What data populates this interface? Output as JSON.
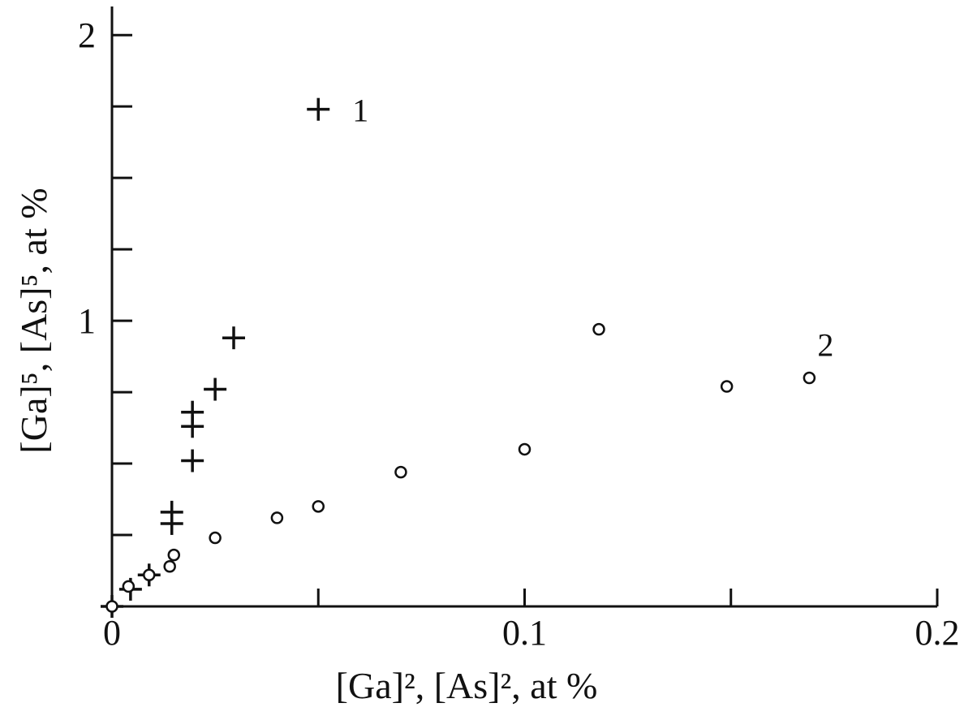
{
  "chart_data": {
    "type": "scatter",
    "xlabel": "[Ga]², [As]², at %",
    "ylabel": "[Ga]⁵, [As]⁵, at %",
    "xlim": [
      0,
      0.2
    ],
    "ylim": [
      0,
      2.1
    ],
    "x_ticks": [
      0,
      0.05,
      0.1,
      0.15,
      0.2
    ],
    "x_tick_labels": [
      "0",
      "",
      "0.1",
      "",
      "0.2"
    ],
    "y_ticks": [
      0,
      0.25,
      0.5,
      0.75,
      1,
      1.25,
      1.5,
      1.75,
      2
    ],
    "y_tick_labels": [
      "",
      "",
      "",
      "",
      "1",
      "",
      "",
      "",
      "2"
    ],
    "grid": false,
    "series": [
      {
        "name": "1",
        "marker": "plus",
        "x": [
          0,
          0.0045,
          0.009,
          0.0145,
          0.0145,
          0.0195,
          0.0195,
          0.0195,
          0.025,
          0.0295,
          0.05
        ],
        "y": [
          0,
          0.06,
          0.11,
          0.29,
          0.33,
          0.51,
          0.63,
          0.68,
          0.76,
          0.94,
          1.74
        ]
      },
      {
        "name": "2",
        "marker": "circle",
        "x": [
          0,
          0.004,
          0.009,
          0.014,
          0.015,
          0.025,
          0.04,
          0.05,
          0.07,
          0.1,
          0.118,
          0.149,
          0.169
        ],
        "y": [
          0,
          0.07,
          0.11,
          0.14,
          0.18,
          0.24,
          0.31,
          0.35,
          0.47,
          0.55,
          0.97,
          0.77,
          0.8
        ]
      }
    ]
  }
}
